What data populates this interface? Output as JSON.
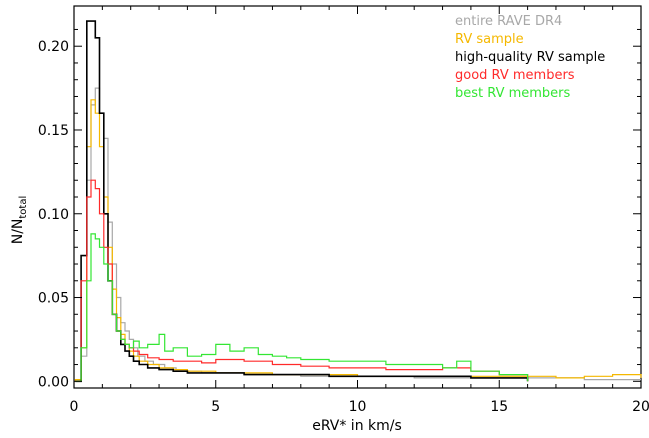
{
  "chart_data": {
    "type": "line",
    "title": "",
    "xlabel": "eRV* in km/s",
    "ylabel": "N/N_total",
    "ylabel_parts": {
      "main": "N/N",
      "sub": "total"
    },
    "xlim": [
      0,
      20
    ],
    "ylim": [
      -0.004,
      0.224
    ],
    "grid": false,
    "legend_position": "top-right",
    "step": "histogram",
    "x_ticks": [
      0,
      5,
      10,
      15,
      20
    ],
    "x_tick_labels": [
      "0",
      "5",
      "10",
      "15",
      "20"
    ],
    "y_ticks": [
      0.0,
      0.05,
      0.1,
      0.15,
      0.2
    ],
    "y_tick_labels": [
      "0.00",
      "0.05",
      "0.10",
      "0.15",
      "0.20"
    ],
    "series": [
      {
        "name": "entire RAVE DR4",
        "color": "#a8a8a8",
        "x": [
          0.05,
          0.25,
          0.45,
          0.6,
          0.75,
          0.9,
          1.05,
          1.2,
          1.35,
          1.5,
          1.65,
          1.8,
          1.95,
          2.1,
          2.25,
          2.5,
          2.8,
          3.2,
          3.6,
          4.0,
          4.5,
          5.0,
          6.0,
          7.0,
          8.0,
          9.0,
          10.0,
          12.0,
          14.0,
          16.0,
          18.0,
          20.0
        ],
        "values": [
          0.001,
          0.015,
          0.12,
          0.165,
          0.175,
          0.16,
          0.145,
          0.095,
          0.07,
          0.05,
          0.035,
          0.03,
          0.025,
          0.02,
          0.015,
          0.012,
          0.01,
          0.008,
          0.007,
          0.006,
          0.005,
          0.005,
          0.004,
          0.004,
          0.003,
          0.003,
          0.003,
          0.002,
          0.002,
          0.002,
          0.001,
          0.001
        ]
      },
      {
        "name": "RV sample",
        "color": "#f5b800",
        "x": [
          0.05,
          0.25,
          0.45,
          0.6,
          0.75,
          0.9,
          1.05,
          1.2,
          1.35,
          1.5,
          1.65,
          1.8,
          1.95,
          2.1,
          2.3,
          2.6,
          3.0,
          3.5,
          4.0,
          5.0,
          6.0,
          7.0,
          8.0,
          10.0,
          12.0,
          14.0,
          16.0,
          17.0,
          18.0,
          19.0,
          20.0
        ],
        "values": [
          0.001,
          0.02,
          0.14,
          0.168,
          0.16,
          0.14,
          0.11,
          0.08,
          0.055,
          0.038,
          0.028,
          0.022,
          0.018,
          0.015,
          0.012,
          0.01,
          0.008,
          0.007,
          0.006,
          0.005,
          0.005,
          0.004,
          0.004,
          0.003,
          0.003,
          0.003,
          0.003,
          0.002,
          0.003,
          0.004,
          0.002
        ]
      },
      {
        "name": "high-quality RV sample",
        "color": "#000000",
        "x": [
          0.05,
          0.25,
          0.45,
          0.6,
          0.75,
          0.9,
          1.05,
          1.2,
          1.35,
          1.5,
          1.65,
          1.8,
          1.95,
          2.1,
          2.3,
          2.6,
          3.0,
          3.5,
          4.0,
          5.0,
          6.0,
          7.0,
          8.0,
          9.0,
          10.0,
          12.0,
          13.0,
          14.0,
          15.0,
          16.0
        ],
        "values": [
          0.0,
          0.075,
          0.215,
          0.215,
          0.205,
          0.16,
          0.1,
          0.06,
          0.04,
          0.03,
          0.022,
          0.018,
          0.015,
          0.012,
          0.01,
          0.008,
          0.007,
          0.006,
          0.005,
          0.005,
          0.004,
          0.004,
          0.004,
          0.003,
          0.003,
          0.003,
          0.003,
          0.002,
          0.002,
          0.0
        ]
      },
      {
        "name": "good RV members",
        "color": "#ff2a2a",
        "x": [
          0.05,
          0.25,
          0.45,
          0.6,
          0.75,
          0.9,
          1.05,
          1.2,
          1.35,
          1.5,
          1.65,
          1.8,
          1.95,
          2.1,
          2.3,
          2.6,
          3.0,
          3.5,
          4.0,
          4.5,
          5.0,
          6.0,
          6.5,
          7.0,
          8.0,
          9.0,
          10.0,
          11.0,
          12.0,
          13.0,
          14.0,
          15.0,
          16.0
        ],
        "values": [
          0.0,
          0.06,
          0.11,
          0.12,
          0.115,
          0.1,
          0.08,
          0.07,
          0.04,
          0.03,
          0.025,
          0.022,
          0.02,
          0.018,
          0.016,
          0.014,
          0.013,
          0.012,
          0.012,
          0.011,
          0.013,
          0.012,
          0.012,
          0.01,
          0.009,
          0.008,
          0.008,
          0.007,
          0.007,
          0.008,
          0.006,
          0.004,
          0.0
        ]
      },
      {
        "name": "best RV members",
        "color": "#33e633",
        "x": [
          0.05,
          0.25,
          0.45,
          0.6,
          0.75,
          0.9,
          1.05,
          1.2,
          1.35,
          1.5,
          1.65,
          1.8,
          1.95,
          2.1,
          2.3,
          2.6,
          3.0,
          3.2,
          3.5,
          4.0,
          4.5,
          5.0,
          5.5,
          6.0,
          6.5,
          7.0,
          7.5,
          8.0,
          9.0,
          10.0,
          11.0,
          12.0,
          13.0,
          13.5,
          14.0,
          15.0,
          16.0
        ],
        "values": [
          0.0,
          0.02,
          0.06,
          0.088,
          0.085,
          0.08,
          0.07,
          0.06,
          0.04,
          0.03,
          0.025,
          0.022,
          0.02,
          0.024,
          0.02,
          0.022,
          0.028,
          0.018,
          0.02,
          0.015,
          0.016,
          0.022,
          0.018,
          0.02,
          0.016,
          0.015,
          0.014,
          0.013,
          0.012,
          0.012,
          0.01,
          0.01,
          0.008,
          0.012,
          0.006,
          0.004,
          0.0
        ]
      }
    ]
  }
}
